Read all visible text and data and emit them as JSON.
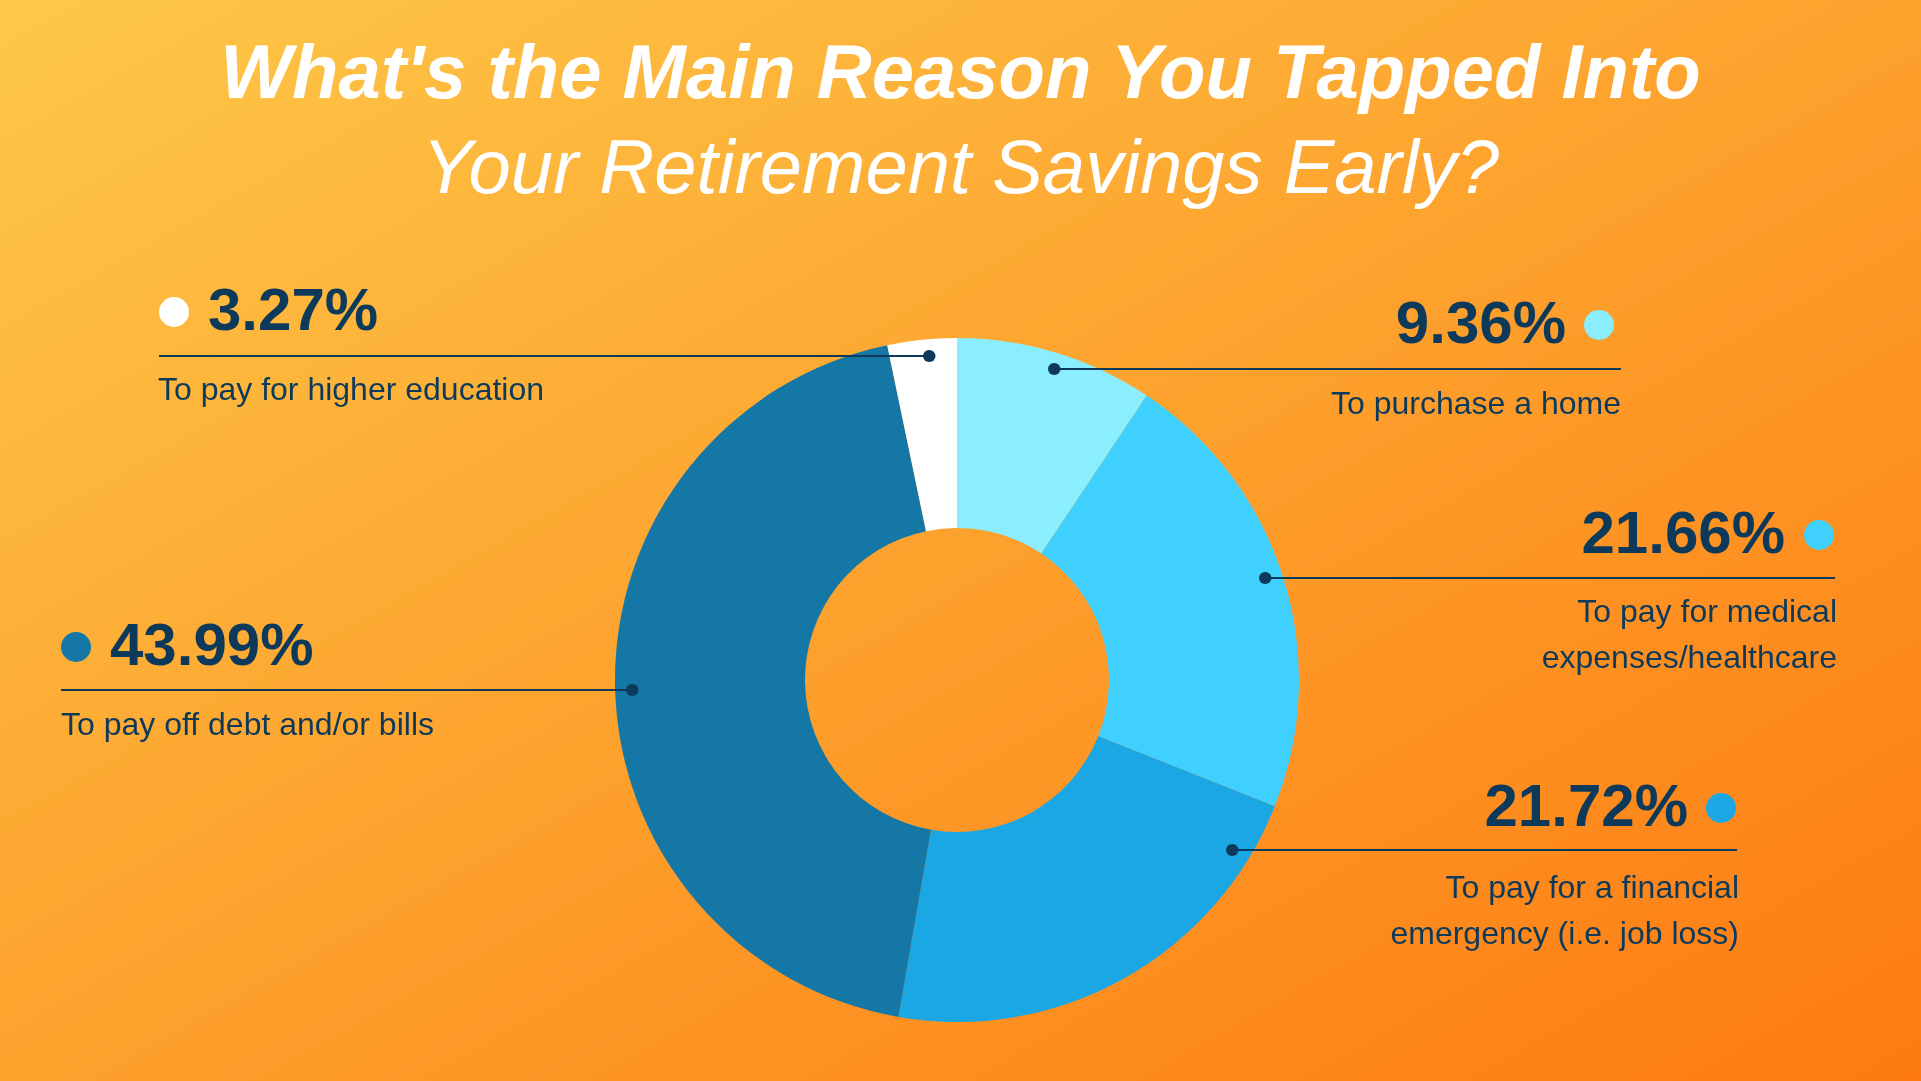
{
  "chart_data": {
    "type": "donut",
    "title": "What's the Main Reason You Tapped Into",
    "subtitle": "Your Retirement Savings Early?",
    "categories": [
      "To purchase a home",
      "To pay for medical expenses/healthcare",
      "To pay for a financial emergency (i.e. job loss)",
      "To pay off debt and/or bills",
      "To pay for higher education"
    ],
    "values": [
      9.36,
      21.66,
      21.72,
      43.99,
      3.27
    ],
    "colors": [
      "#8aeeff",
      "#40d0fd",
      "#1ba6e4",
      "#1477a6",
      "#ffffff"
    ],
    "value_labels": [
      "9.36%",
      "21.66%",
      "21.72%",
      "43.99%",
      "3.27%"
    ]
  }
}
